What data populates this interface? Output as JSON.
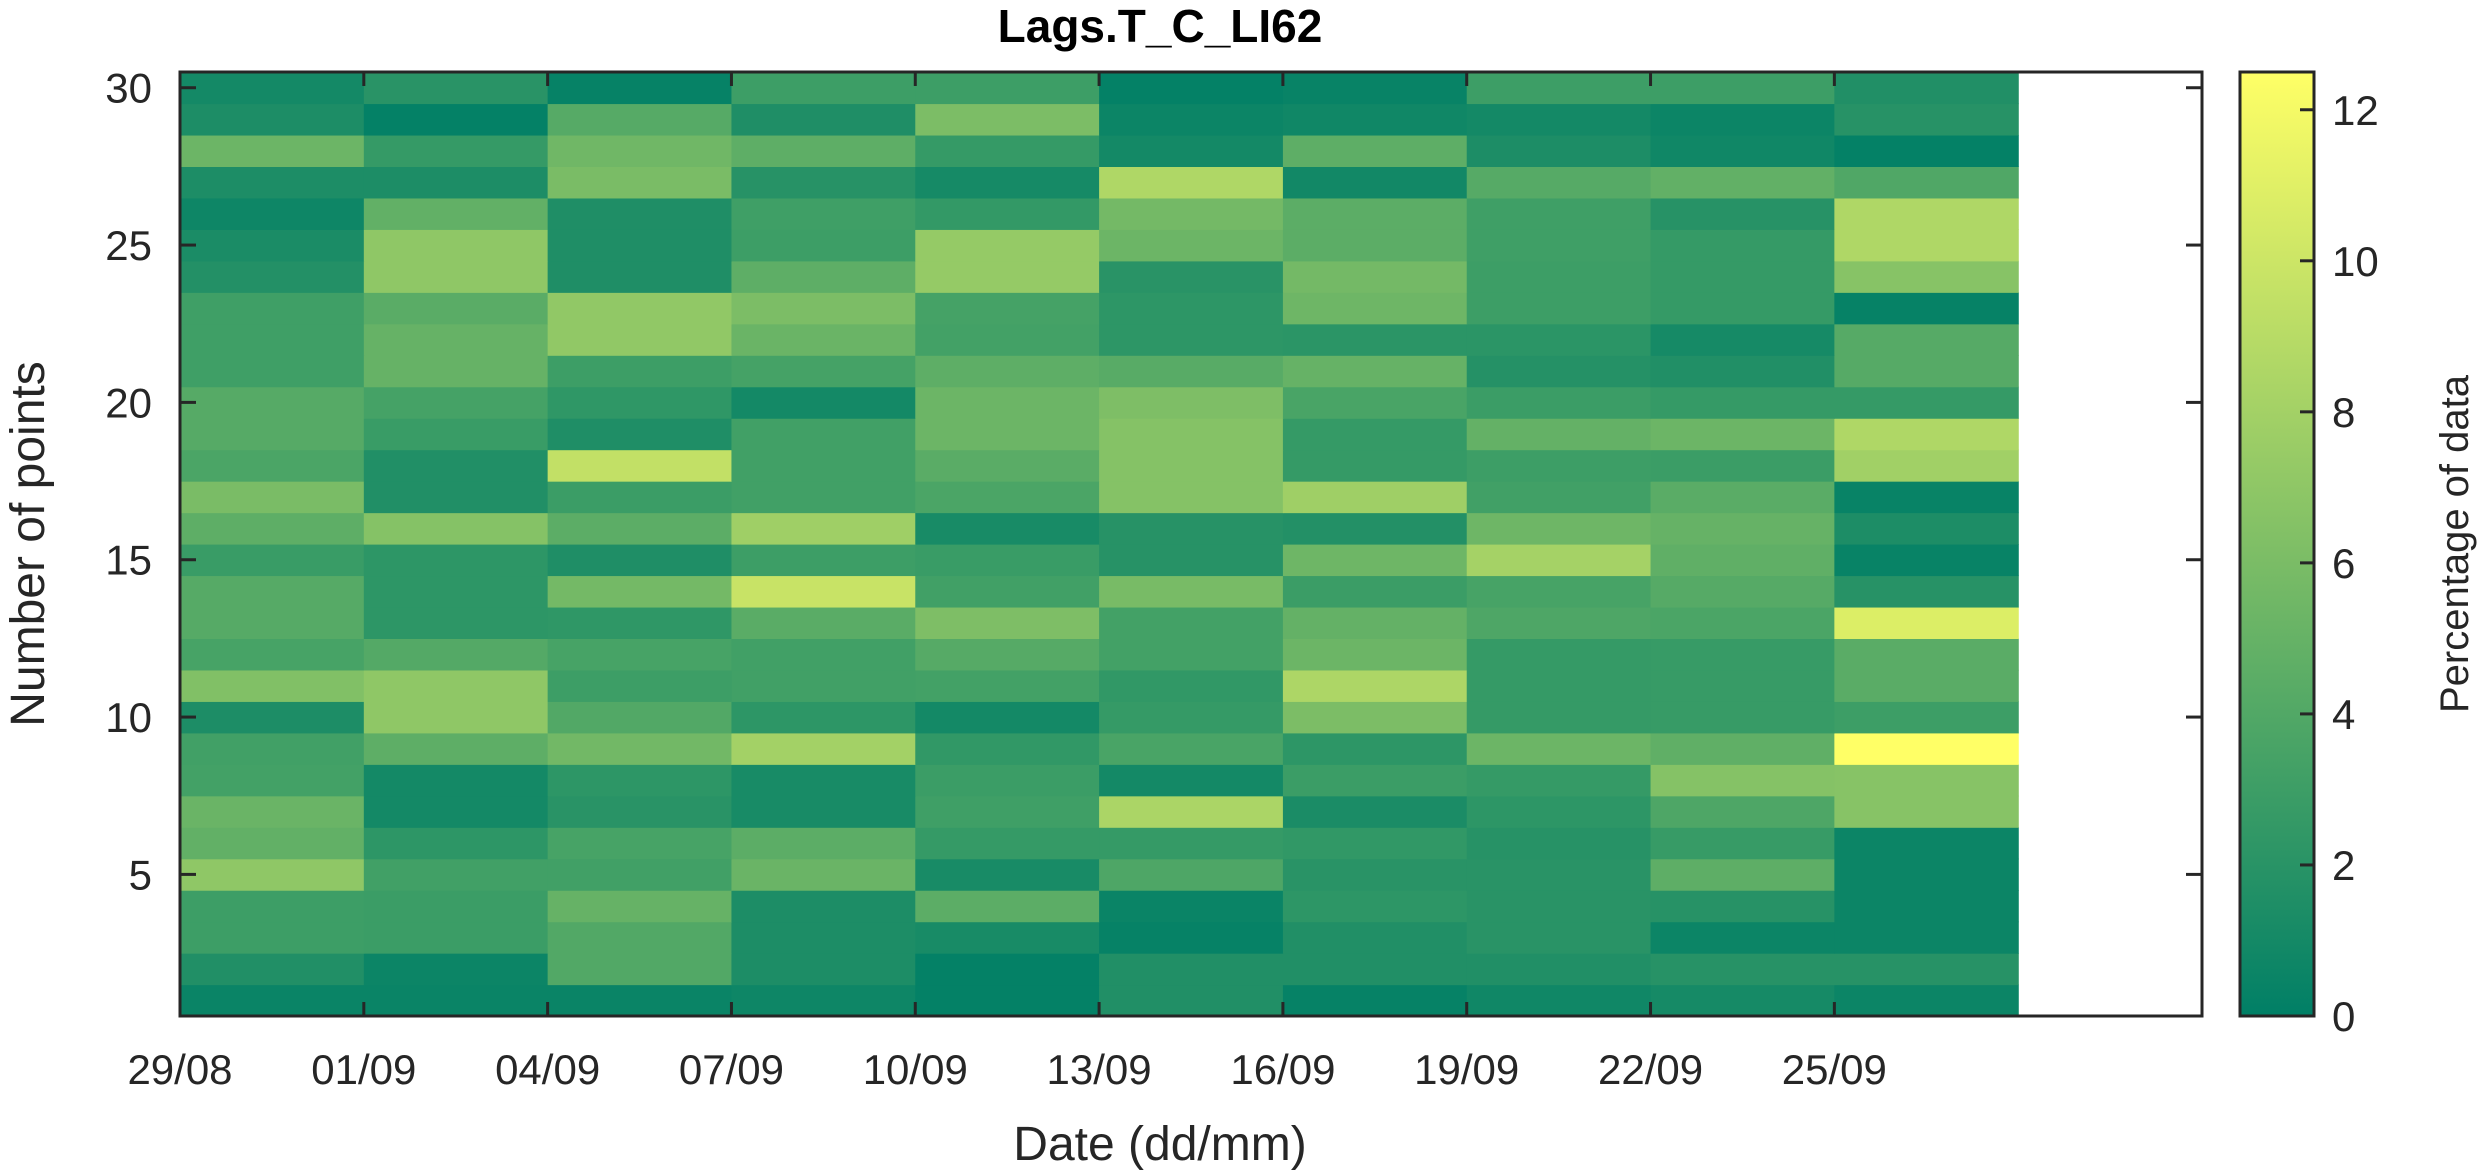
{
  "chart_data": {
    "type": "heatmap",
    "title": "Lags.T_C_LI62",
    "xlabel": "Date (dd/mm)",
    "ylabel": "Number of points",
    "colorbar_label": "Percentage of data",
    "x_ticks": [
      "29/08",
      "01/09",
      "04/09",
      "07/09",
      "10/09",
      "13/09",
      "16/09",
      "19/09",
      "22/09",
      "25/09"
    ],
    "y_ticks": [
      5,
      10,
      15,
      20,
      25,
      30
    ],
    "colorbar_ticks": [
      0,
      2,
      4,
      6,
      8,
      10,
      12
    ],
    "colorbar_range": [
      0,
      12.5
    ],
    "colormap": "summer",
    "color_low": "#007f66",
    "color_high": "#ffff66",
    "x_range": [
      "29/08",
      "30/09"
    ],
    "x_days": 33,
    "y_range": [
      0.5,
      30.5
    ],
    "rows_y": [
      1,
      2,
      3,
      4,
      5,
      6,
      7,
      8,
      9,
      10,
      11,
      12,
      13,
      14,
      15,
      16,
      17,
      18,
      19,
      20,
      21,
      22,
      23,
      24,
      25,
      26,
      27,
      28,
      29,
      30
    ],
    "column_dates": [
      "29/08",
      "01/09",
      "04/09",
      "07/09",
      "10/09",
      "13/09",
      "16/09",
      "19/09",
      "22/09",
      "25/09"
    ],
    "column_span_days": 3,
    "values": [
      [
        0.5,
        0.5,
        0.5,
        0.7,
        0.2,
        1.6,
        0.3,
        0.8,
        1.1,
        0.6
      ],
      [
        1.6,
        0.6,
        4.0,
        1.4,
        0.2,
        1.6,
        1.6,
        1.6,
        1.9,
        1.9
      ],
      [
        3.0,
        2.9,
        4.0,
        1.4,
        1.2,
        0.3,
        1.6,
        2.0,
        0.6,
        0.6
      ],
      [
        3.0,
        2.9,
        5.0,
        1.4,
        4.5,
        0.5,
        2.2,
        2.0,
        1.9,
        0.6
      ],
      [
        7.0,
        3.2,
        3.2,
        5.2,
        1.2,
        3.8,
        2.0,
        2.0,
        4.6,
        0.6
      ],
      [
        4.8,
        2.2,
        3.5,
        4.5,
        2.6,
        2.6,
        2.4,
        1.9,
        2.7,
        0.6
      ],
      [
        5.2,
        1.0,
        2.0,
        1.2,
        3.1,
        8.4,
        1.3,
        2.2,
        3.8,
        6.6
      ],
      [
        3.3,
        1.0,
        2.2,
        1.2,
        2.9,
        1.0,
        2.9,
        2.6,
        6.5,
        6.6
      ],
      [
        3.2,
        4.6,
        5.6,
        8.0,
        2.4,
        3.6,
        2.2,
        5.3,
        4.7,
        12.5
      ],
      [
        1.4,
        7.0,
        4.0,
        2.2,
        1.0,
        2.6,
        6.1,
        2.6,
        2.7,
        3.0
      ],
      [
        6.3,
        7.0,
        3.0,
        3.2,
        3.3,
        2.4,
        8.5,
        2.6,
        2.7,
        4.4
      ],
      [
        3.5,
        4.1,
        3.5,
        3.2,
        4.2,
        3.3,
        5.3,
        2.6,
        2.7,
        4.4
      ],
      [
        4.2,
        2.2,
        2.3,
        4.4,
        6.2,
        3.3,
        4.9,
        3.8,
        3.7,
        10.8
      ],
      [
        4.2,
        2.2,
        5.7,
        9.8,
        3.2,
        5.9,
        2.9,
        3.5,
        4.2,
        1.9
      ],
      [
        2.8,
        2.2,
        1.5,
        3.0,
        2.8,
        1.9,
        5.4,
        8.1,
        4.7,
        0.4
      ],
      [
        4.6,
        6.5,
        4.5,
        7.8,
        1.2,
        1.9,
        1.7,
        5.4,
        5.0,
        1.4
      ],
      [
        6.0,
        1.6,
        2.9,
        3.2,
        3.7,
        6.5,
        7.8,
        3.2,
        4.4,
        0.4
      ],
      [
        3.7,
        1.6,
        9.5,
        3.2,
        4.4,
        6.5,
        2.6,
        3.0,
        2.9,
        7.9
      ],
      [
        4.2,
        2.8,
        1.5,
        3.2,
        5.3,
        6.5,
        2.6,
        4.9,
        5.3,
        8.6
      ],
      [
        4.2,
        3.4,
        2.3,
        1.0,
        5.3,
        6.2,
        3.6,
        2.9,
        2.6,
        2.6
      ],
      [
        3.1,
        5.0,
        3.0,
        3.4,
        4.6,
        4.3,
        5.0,
        1.8,
        1.6,
        4.2
      ],
      [
        3.1,
        5.0,
        7.1,
        5.2,
        3.3,
        2.2,
        2.1,
        2.1,
        1.1,
        4.2
      ],
      [
        3.1,
        4.4,
        7.1,
        6.1,
        3.4,
        2.2,
        5.4,
        3.0,
        2.6,
        0.3
      ],
      [
        1.7,
        7.0,
        1.5,
        4.6,
        7.3,
        2.0,
        5.7,
        3.0,
        2.6,
        6.6
      ],
      [
        1.3,
        7.0,
        1.5,
        3.0,
        7.3,
        5.3,
        4.5,
        3.1,
        2.6,
        8.6
      ],
      [
        0.7,
        4.8,
        1.5,
        3.1,
        2.5,
        5.7,
        4.5,
        3.1,
        1.9,
        8.6
      ],
      [
        1.4,
        1.4,
        6.0,
        1.9,
        1.1,
        8.6,
        0.9,
        4.2,
        4.8,
        3.9
      ],
      [
        5.3,
        2.6,
        5.5,
        4.6,
        2.6,
        1.0,
        4.6,
        1.4,
        0.8,
        0.2
      ],
      [
        1.4,
        0.2,
        4.2,
        1.5,
        6.1,
        0.6,
        0.8,
        1.0,
        0.6,
        1.9
      ],
      [
        1.0,
        2.0,
        0.3,
        3.0,
        3.0,
        0.2,
        0.4,
        3.0,
        3.0,
        1.6
      ]
    ]
  }
}
